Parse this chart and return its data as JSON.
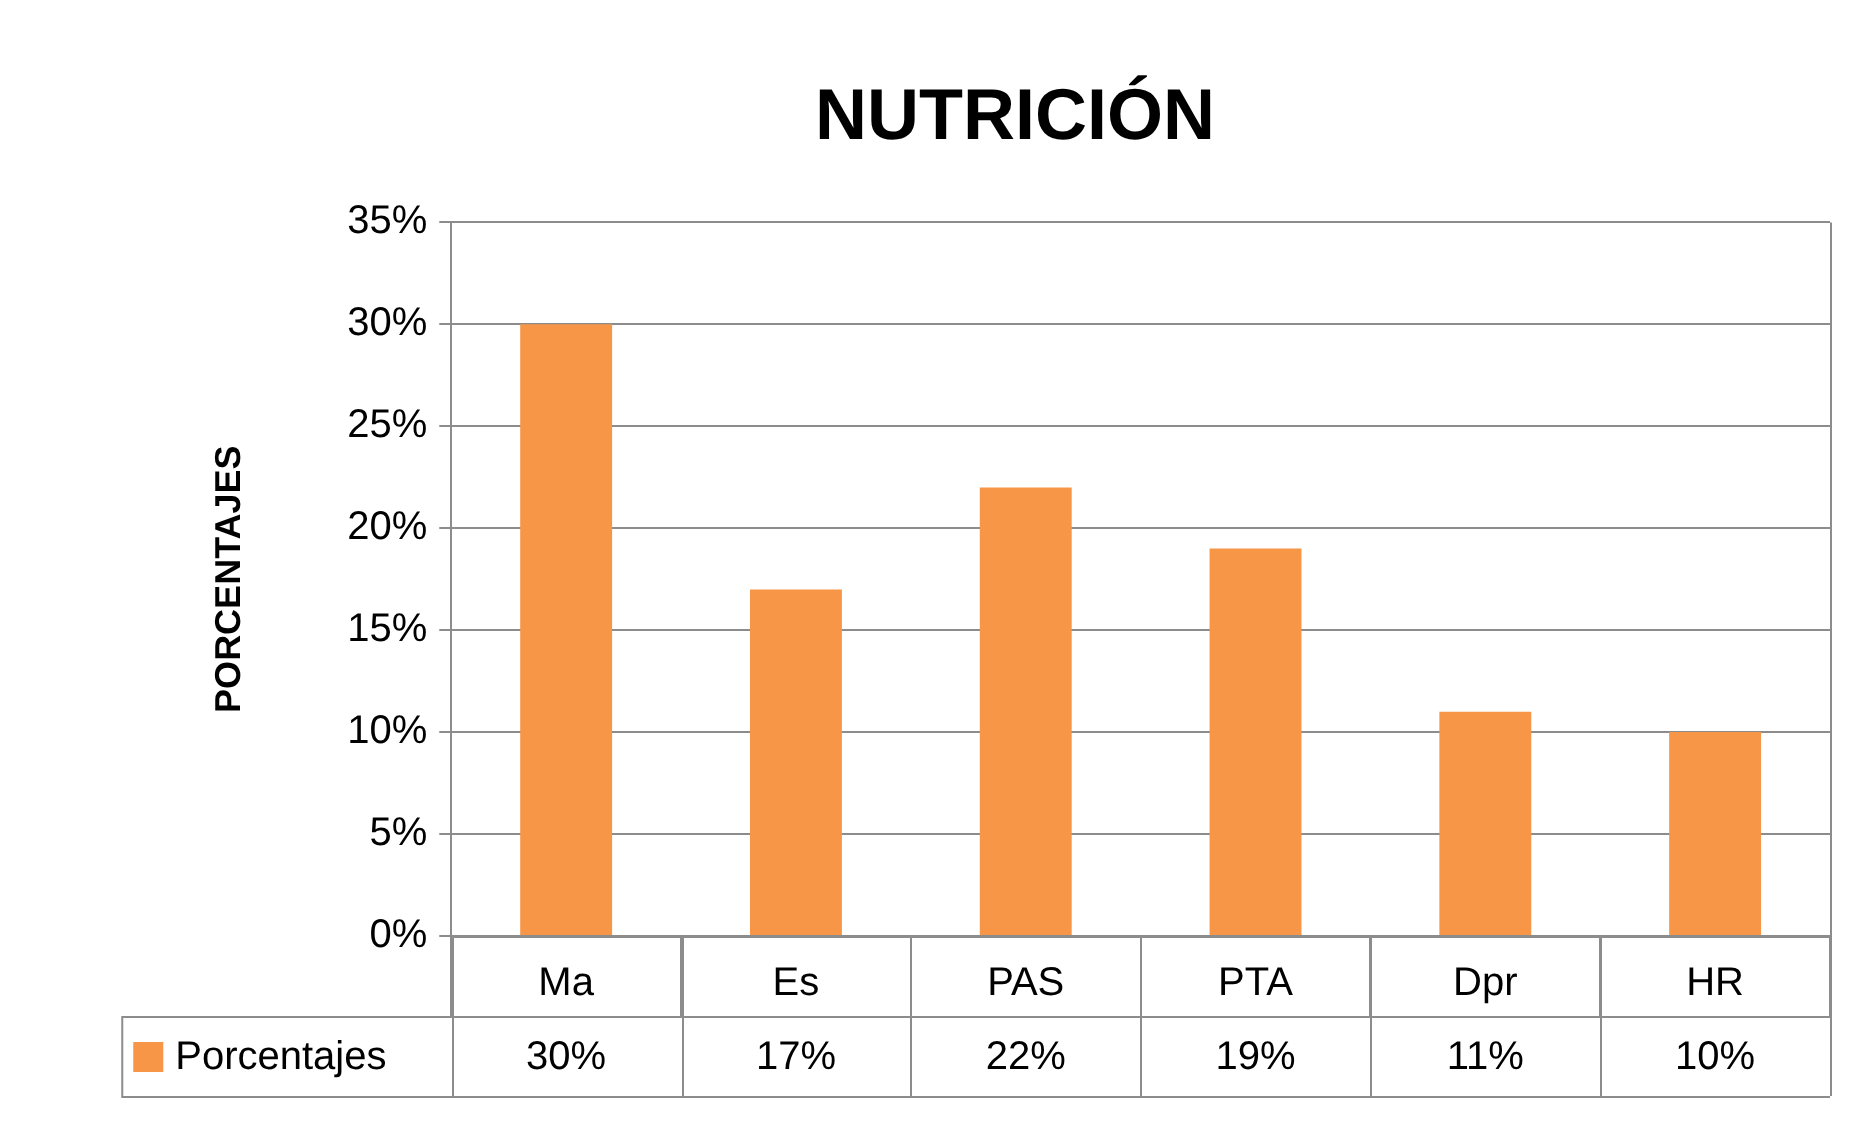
{
  "chart_data": {
    "type": "bar",
    "title": "NUTRICIÓN",
    "ylabel": "PORCENTAJES",
    "categories": [
      "Ma",
      "Es",
      "PAS",
      "PTA",
      "Dpr",
      "HR"
    ],
    "series": [
      {
        "name": "Porcentajes",
        "color": "#f79646",
        "values": [
          30,
          17,
          22,
          19,
          11,
          10
        ],
        "value_labels": [
          "30%",
          "17%",
          "22%",
          "19%",
          "11%",
          "10%"
        ]
      }
    ],
    "ylim": [
      0,
      35
    ],
    "yticks": [
      {
        "value": 0,
        "label": "0%"
      },
      {
        "value": 5,
        "label": "5%"
      },
      {
        "value": 10,
        "label": "10%"
      },
      {
        "value": 15,
        "label": "15%"
      },
      {
        "value": 20,
        "label": "20%"
      },
      {
        "value": 25,
        "label": "25%"
      },
      {
        "value": 30,
        "label": "30%"
      },
      {
        "value": 35,
        "label": "35%"
      }
    ],
    "grid": "y",
    "legend": "bottom"
  }
}
